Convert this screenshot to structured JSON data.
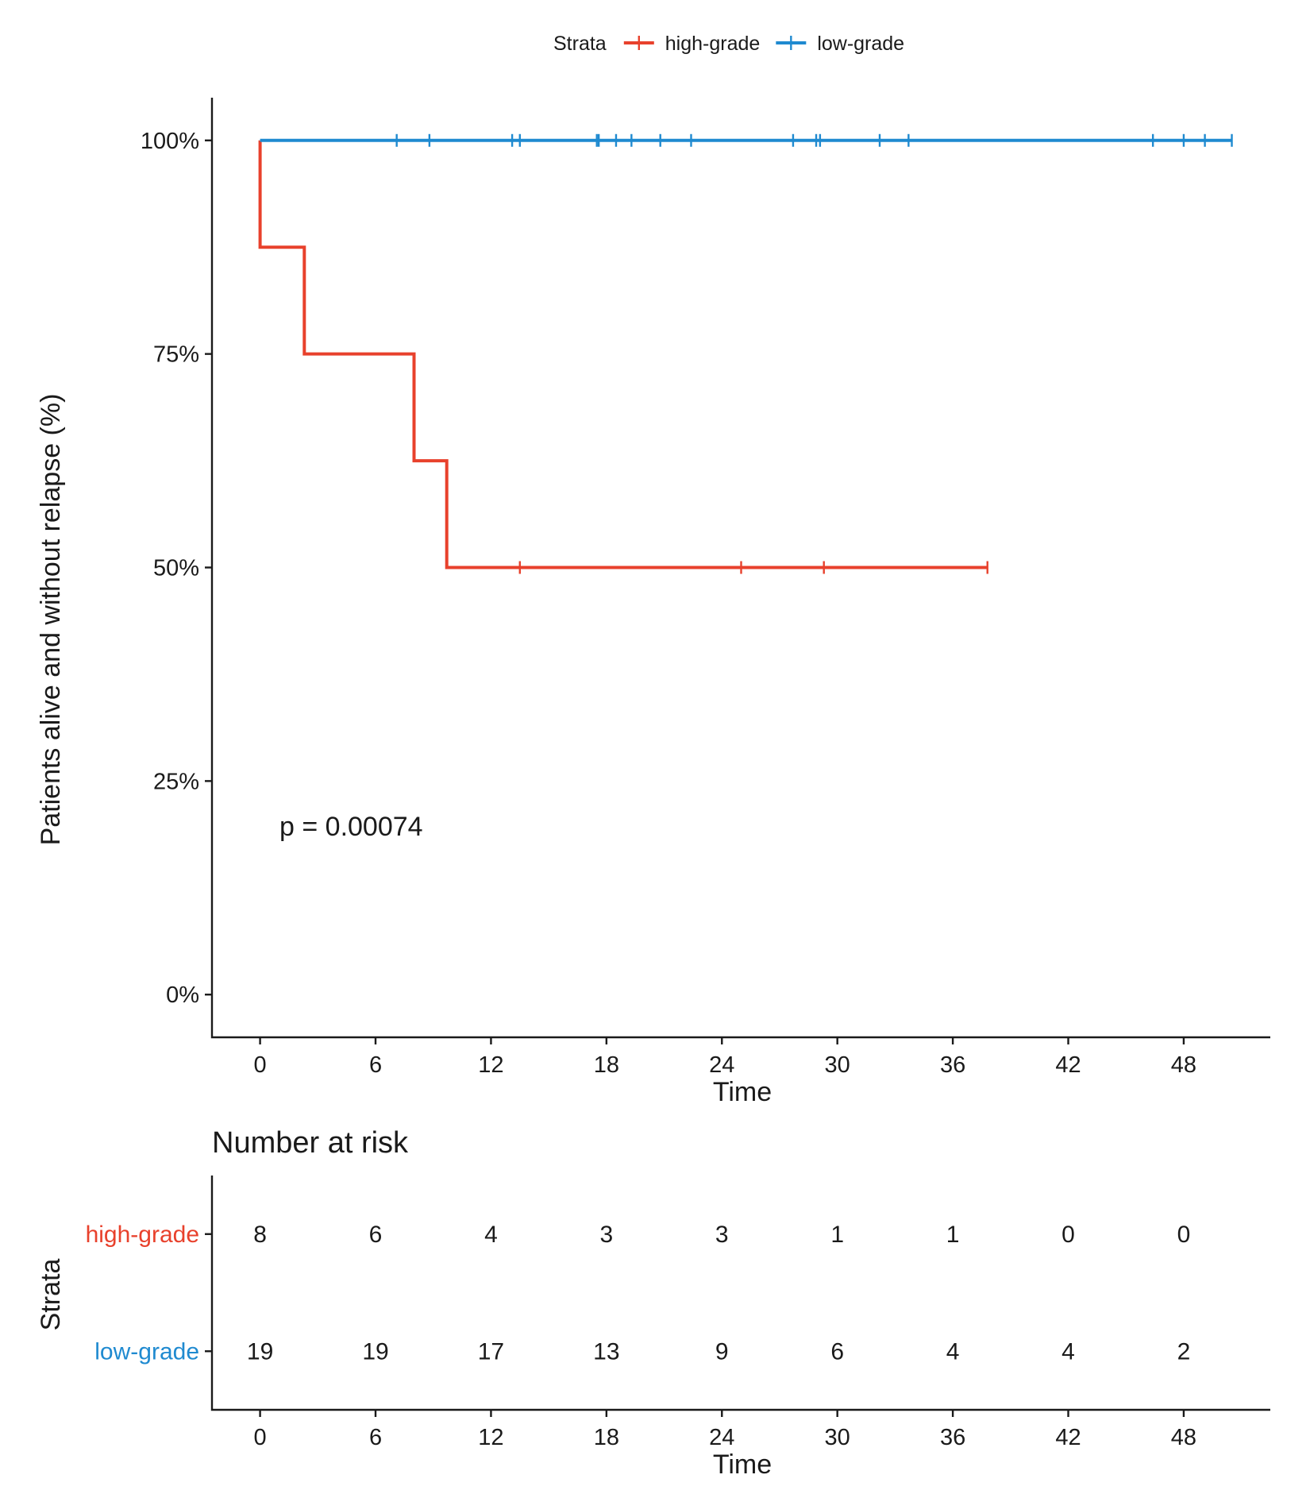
{
  "chart_data": [
    {
      "type": "line",
      "subtype": "kaplan-meier-step",
      "title": "",
      "legend": {
        "title": "Strata",
        "position": "top",
        "entries": [
          "high-grade",
          "low-grade"
        ]
      },
      "xlabel": "Time",
      "ylabel": "Patients alive and without relapse (%)",
      "xlim": [
        -2.5,
        52.5
      ],
      "ylim": [
        -5,
        105
      ],
      "xticks": [
        0,
        6,
        12,
        18,
        24,
        30,
        36,
        42,
        48
      ],
      "xtick_labels": [
        "0",
        "6",
        "12",
        "18",
        "24",
        "30",
        "36",
        "42",
        "48"
      ],
      "yticks": [
        0,
        25,
        50,
        75,
        100
      ],
      "ytick_labels": [
        "0%",
        "25%",
        "50%",
        "75%",
        "100%"
      ],
      "annotation": "p = 0.00074",
      "annotation_pos": {
        "x": 1,
        "y": 19.5
      },
      "series": [
        {
          "name": "high-grade",
          "color": "#e8412c",
          "steps": [
            [
              0,
              100
            ],
            [
              0,
              87.5
            ],
            [
              2.3,
              87.5
            ],
            [
              2.3,
              75
            ],
            [
              8.0,
              75
            ],
            [
              8.0,
              62.5
            ],
            [
              9.7,
              62.5
            ],
            [
              9.7,
              50
            ],
            [
              37.8,
              50
            ]
          ],
          "censored": [
            [
              13.5,
              50
            ],
            [
              25.0,
              50
            ],
            [
              29.3,
              50
            ],
            [
              37.8,
              50
            ]
          ]
        },
        {
          "name": "low-grade",
          "color": "#1f8ad0",
          "steps": [
            [
              0,
              100
            ],
            [
              50.5,
              100
            ]
          ],
          "censored": [
            [
              7.1,
              100
            ],
            [
              8.8,
              100
            ],
            [
              13.1,
              100
            ],
            [
              13.5,
              100
            ],
            [
              17.5,
              100
            ],
            [
              17.6,
              100
            ],
            [
              18.5,
              100
            ],
            [
              19.3,
              100
            ],
            [
              20.8,
              100
            ],
            [
              22.4,
              100
            ],
            [
              27.7,
              100
            ],
            [
              28.9,
              100
            ],
            [
              29.1,
              100
            ],
            [
              32.2,
              100
            ],
            [
              33.7,
              100
            ],
            [
              46.4,
              100
            ],
            [
              48.0,
              100
            ],
            [
              49.1,
              100
            ],
            [
              50.5,
              100
            ]
          ]
        }
      ]
    },
    {
      "type": "table",
      "title": "Number at risk",
      "xlabel": "Time",
      "ylabel": "Strata",
      "xlim": [
        -2.5,
        52.5
      ],
      "times": [
        0,
        6,
        12,
        18,
        24,
        30,
        36,
        42,
        48
      ],
      "xtick_labels": [
        "0",
        "6",
        "12",
        "18",
        "24",
        "30",
        "36",
        "42",
        "48"
      ],
      "rows": [
        {
          "name": "high-grade",
          "color": "#e8412c",
          "values": [
            8,
            6,
            4,
            3,
            3,
            1,
            1,
            0,
            0
          ]
        },
        {
          "name": "low-grade",
          "color": "#1f8ad0",
          "values": [
            19,
            19,
            17,
            13,
            9,
            6,
            4,
            4,
            2
          ]
        }
      ]
    }
  ]
}
